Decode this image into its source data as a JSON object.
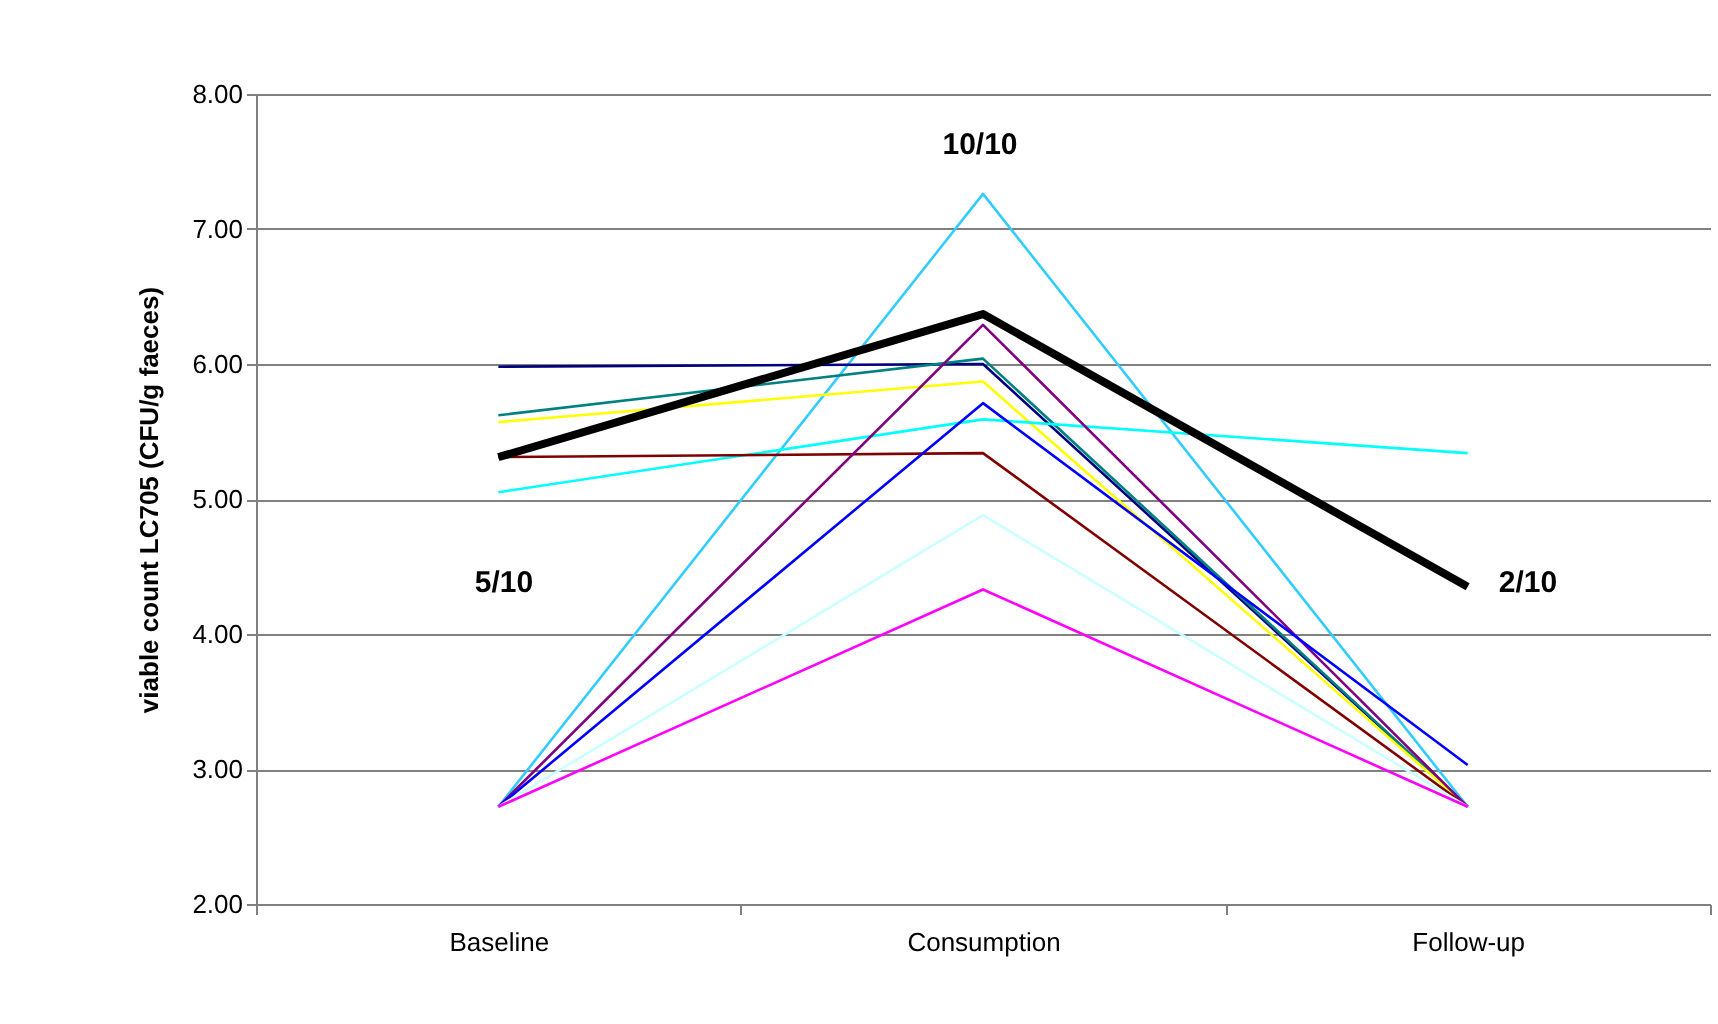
{
  "chart_data": {
    "type": "line",
    "ylabel": "viable count LC705 (CFU/g faeces)",
    "categories": [
      "Baseline",
      "Consumption",
      "Follow-up"
    ],
    "series": [
      {
        "color": "#33ccff",
        "values": [
          2.72,
          7.26,
          2.72
        ]
      },
      {
        "color": "#000080",
        "values": [
          5.98,
          6.0,
          2.72
        ]
      },
      {
        "color": "#008080",
        "values": [
          5.62,
          6.04,
          2.72
        ]
      },
      {
        "color": "#ffff00",
        "values": [
          5.57,
          5.87,
          2.72
        ]
      },
      {
        "color": "#00ffff",
        "values": [
          5.05,
          5.59,
          5.34
        ]
      },
      {
        "color": "#800000",
        "values": [
          5.31,
          5.34,
          2.72
        ]
      },
      {
        "color": "#800080",
        "values": [
          2.72,
          6.29,
          2.72
        ]
      },
      {
        "color": "#0000ff",
        "values": [
          2.72,
          5.71,
          3.03
        ]
      },
      {
        "color": "#ccffff",
        "values": [
          2.72,
          4.88,
          2.72
        ]
      },
      {
        "color": "#ff00ff",
        "values": [
          2.72,
          4.33,
          2.72
        ]
      },
      {
        "color": "#000000",
        "values": [
          5.31,
          6.37,
          4.35
        ]
      }
    ],
    "ylim": [
      2,
      8
    ],
    "yticks": [
      {
        "value": 2,
        "label": "2.00"
      },
      {
        "value": 3,
        "label": "3.00"
      },
      {
        "value": 4,
        "label": "4.00"
      },
      {
        "value": 5,
        "label": "5.00"
      },
      {
        "value": 6,
        "label": "6.00"
      },
      {
        "value": 7,
        "label": "7.00"
      },
      {
        "value": 8,
        "label": "8.00"
      }
    ],
    "grid": "y",
    "legend": false,
    "marker": "none",
    "line_style": "solid",
    "annotations": [
      "5/10",
      "10/10",
      "2/10"
    ]
  }
}
